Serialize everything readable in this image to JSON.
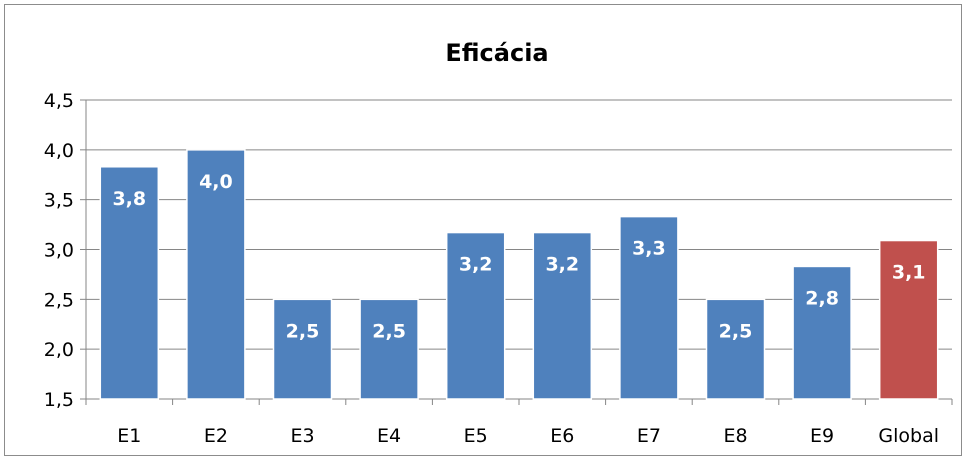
{
  "chart_data": {
    "type": "bar",
    "title": "Eficácia",
    "xlabel": "",
    "ylabel": "",
    "categories": [
      "E1",
      "E2",
      "E3",
      "E4",
      "E5",
      "E6",
      "E7",
      "E8",
      "E9",
      "Global"
    ],
    "values": [
      3.83,
      4.0,
      2.5,
      2.5,
      3.17,
      3.17,
      3.33,
      2.5,
      2.83,
      3.09
    ],
    "value_labels": [
      "3,8",
      "4,0",
      "2,5",
      "2,5",
      "3,2",
      "3,2",
      "3,3",
      "2,5",
      "2,8",
      "3,1"
    ],
    "ylim": [
      1.5,
      4.5
    ],
    "yticks": [
      1.5,
      2.0,
      2.5,
      3.0,
      3.5,
      4.0,
      4.5
    ],
    "ytick_labels": [
      "1,5",
      "2,0",
      "2,5",
      "3,0",
      "3,5",
      "4,0",
      "4,5"
    ],
    "grid": true,
    "legend": "none",
    "colors": {
      "bar": "#4f81bd",
      "highlight": "#c0504d",
      "grid": "#868686"
    },
    "highlight_category": "Global"
  }
}
